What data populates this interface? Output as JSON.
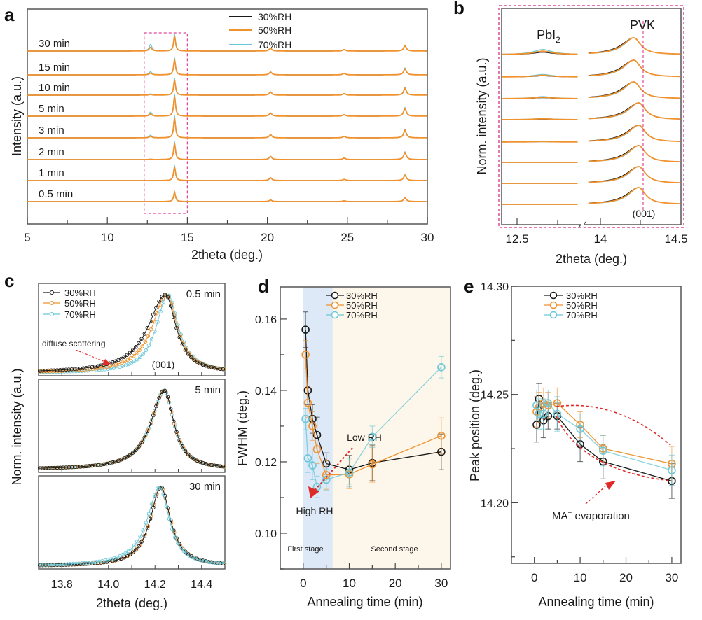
{
  "colors": {
    "rh30": "#1a1a1a",
    "rh50": "#f0922e",
    "rh70": "#6cc8d8",
    "highlight": "#e0489a",
    "arrow": "#e02a2a",
    "stage1": "#dde9f7",
    "stage2": "#fdf6ea"
  },
  "chart_data": [
    {
      "id": "a",
      "panel_label": "a",
      "type": "line",
      "title": "",
      "xlabel": "2theta (deg.)",
      "ylabel": "Intensity (a.u.)",
      "xlim": [
        5,
        30
      ],
      "xticks": [
        5,
        10,
        15,
        20,
        25,
        30
      ],
      "legend": [
        "30%RH",
        "50%RH",
        "70%RH"
      ],
      "legend_position": "top-right",
      "offset_labels": [
        "30 min",
        "15 min",
        "10 min",
        "5 min",
        "3 min",
        "2 min",
        "1 min",
        "0.5 min"
      ],
      "peaks_2theta": [
        12.7,
        14.2,
        20.2,
        24.8,
        28.6
      ],
      "peak_heights_rel": [
        [
          0.25,
          1.0,
          0.18,
          0.1,
          0.35
        ],
        [
          0.12,
          1.0,
          0.18,
          0.1,
          0.4
        ],
        [
          0.05,
          1.0,
          0.2,
          0.1,
          0.45
        ],
        [
          0.15,
          1.3,
          0.2,
          0.1,
          0.5
        ],
        [
          0.1,
          1.3,
          0.2,
          0.1,
          0.5
        ],
        [
          0.02,
          1.05,
          0.2,
          0.1,
          0.45
        ],
        [
          0.0,
          0.9,
          0.18,
          0.08,
          0.35
        ],
        [
          0.0,
          0.6,
          0.1,
          0.05,
          0.25
        ]
      ],
      "highlight_box_2theta": [
        12.3,
        15.0
      ]
    },
    {
      "id": "b",
      "panel_label": "b",
      "type": "line",
      "xlabel": "2theta (deg.)",
      "ylabel": "Norm. intensity (a.u.)",
      "xticks": [
        "12.5",
        "14",
        "14.5"
      ],
      "x_break": true,
      "segment1_xlim": [
        12.4,
        12.9
      ],
      "segment2_xlim": [
        13.9,
        14.5
      ],
      "annotations": [
        "PbI",
        "2",
        "PVK",
        "(001)"
      ],
      "ref_line_2theta": 14.26,
      "pbi2_peak": 12.66,
      "pvk_peak_positions": [
        14.21,
        14.21,
        14.21,
        14.24,
        14.24,
        14.24,
        14.24,
        14.24
      ],
      "pbi2_heights_rel": [
        0.12,
        0.06,
        0.05,
        0.03,
        0.02,
        0.0,
        0.0,
        0.0
      ]
    },
    {
      "id": "c",
      "panel_label": "c",
      "type": "scatter",
      "xlabel": "2theta (deg.)",
      "ylabel": "Norm. intensity (a.u.)",
      "xlim": [
        13.7,
        14.5
      ],
      "xticks": [
        "13.8",
        "14.0",
        "14.2",
        "14.4"
      ],
      "legend": [
        "30%RH",
        "50%RH",
        "70%RH"
      ],
      "legend_position": "top-left",
      "panels": [
        {
          "label": "0.5 min",
          "peak": [
            14.245,
            14.25,
            14.255
          ],
          "hwhm_left": [
            0.09,
            0.075,
            0.06
          ],
          "hwhm_right": 0.055
        },
        {
          "label": "5 min",
          "peak": [
            14.24,
            14.24,
            14.24
          ],
          "hwhm_left": [
            0.07,
            0.07,
            0.07
          ],
          "hwhm_right": 0.05
        },
        {
          "label": "30 min",
          "peak": [
            14.225,
            14.225,
            14.22
          ],
          "hwhm_left": [
            0.055,
            0.055,
            0.065
          ],
          "hwhm_right": 0.05
        }
      ],
      "annotations": {
        "scatter": "diffuse scattering",
        "plane": "(001)"
      }
    },
    {
      "id": "d",
      "panel_label": "d",
      "type": "line",
      "xlabel": "Annealing time (min)",
      "ylabel": "FWHM (deg.)",
      "xlim": [
        -5,
        32
      ],
      "ylim": [
        0.09,
        0.169
      ],
      "xticks": [
        0,
        10,
        20,
        30
      ],
      "yticks": [
        "0.10",
        "0.12",
        "0.14",
        "0.16"
      ],
      "legend_position": "top",
      "stages": [
        {
          "label": "First stage",
          "from": 0,
          "to": 6.4
        },
        {
          "label": "Second stage",
          "from": 6.4,
          "to": 32
        }
      ],
      "annotations": [
        "Low RH",
        "High RH"
      ],
      "series": [
        {
          "name": "30%RH",
          "x": [
            0.5,
            1,
            2,
            3,
            5,
            10,
            15,
            30
          ],
          "y": [
            0.157,
            0.14,
            0.132,
            0.1275,
            0.1195,
            0.1178,
            0.1197,
            0.1228
          ],
          "err": [
            0.005,
            0.004,
            0.004,
            0.005,
            0.003,
            0.004,
            0.005,
            0.005
          ]
        },
        {
          "name": "50%RH",
          "x": [
            0.5,
            1,
            2,
            3,
            5,
            10,
            15,
            30
          ],
          "y": [
            0.15,
            0.1365,
            0.13,
            0.1235,
            0.1163,
            0.1165,
            0.1193,
            0.1273
          ],
          "err": [
            0.004,
            0.004,
            0.004,
            0.004,
            0.004,
            0.004,
            0.005,
            0.005
          ]
        },
        {
          "name": "70%RH",
          "x": [
            0.5,
            1,
            2,
            3,
            5,
            10,
            15,
            30
          ],
          "y": [
            0.132,
            0.121,
            0.119,
            0.113,
            0.115,
            0.117,
            0.127,
            0.1465
          ],
          "err": [
            0.003,
            0.004,
            0.004,
            0.003,
            0.003,
            0.004,
            0.003,
            0.003
          ]
        }
      ]
    },
    {
      "id": "e",
      "panel_label": "e",
      "type": "line",
      "xlabel": "Annealing time (min)",
      "ylabel": "Peak position (deg.)",
      "xlim": [
        -5,
        32
      ],
      "ylim": [
        14.172,
        14.3
      ],
      "xticks": [
        0,
        10,
        20,
        30
      ],
      "yticks": [
        "14.20",
        "14.25",
        "14.30"
      ],
      "legend_position": "top-left",
      "annotation": "MA",
      "annotation_sup": "+",
      "annotation_rest": " evaporation",
      "series": [
        {
          "name": "30%RH",
          "x": [
            0.5,
            1,
            2,
            3,
            5,
            10,
            15,
            30
          ],
          "y": [
            14.236,
            14.248,
            14.238,
            14.24,
            14.24,
            14.227,
            14.219,
            14.21
          ],
          "err": [
            0.008,
            0.007,
            0.008,
            0.006,
            0.006,
            0.008,
            0.008,
            0.008
          ]
        },
        {
          "name": "50%RH",
          "x": [
            0.5,
            1,
            2,
            3,
            5,
            10,
            15,
            30
          ],
          "y": [
            14.242,
            14.244,
            14.246,
            14.245,
            14.246,
            14.236,
            14.225,
            14.218
          ],
          "err": [
            0.007,
            0.007,
            0.007,
            0.006,
            0.007,
            0.006,
            0.006,
            0.008
          ]
        },
        {
          "name": "70%RH",
          "x": [
            0.5,
            1,
            2,
            3,
            5,
            10,
            15,
            30
          ],
          "y": [
            14.245,
            14.241,
            14.241,
            14.246,
            14.241,
            14.234,
            14.224,
            14.215
          ],
          "err": [
            0.007,
            0.007,
            0.007,
            0.006,
            0.008,
            0.007,
            0.007,
            0.007
          ]
        }
      ]
    }
  ]
}
